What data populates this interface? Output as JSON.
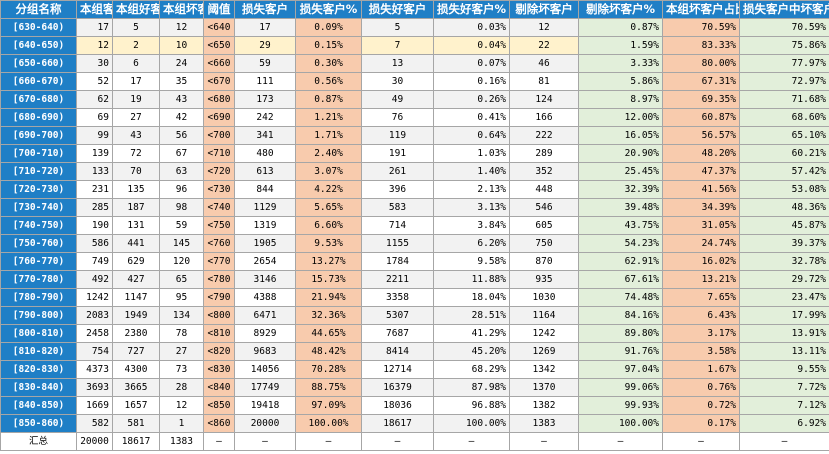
{
  "headers": [
    "分组名称",
    "本组客户",
    "本组好客户",
    "本组坏客户",
    "阈值",
    "损失客户",
    "损失客户%",
    "损失好客户",
    "损失好客户%",
    "剔除坏客户",
    "剔除坏客户%",
    "本组坏客户占比",
    "损失客户中坏客户占比"
  ],
  "colors": {
    "header_blue": "#1f7fc6",
    "peach": "#f8cbad",
    "green": "#e2efda",
    "highlight": "#fff2cc",
    "stripe": "#f2f2f2"
  },
  "rows": [
    [
      "[630-640)",
      "17",
      "5",
      "12",
      "<640",
      "17",
      "0.09%",
      "5",
      "0.03%",
      "12",
      "0.87%",
      "70.59%",
      "70.59%"
    ],
    [
      "[640-650)",
      "12",
      "2",
      "10",
      "<650",
      "29",
      "0.15%",
      "7",
      "0.04%",
      "22",
      "1.59%",
      "83.33%",
      "75.86%"
    ],
    [
      "[650-660)",
      "30",
      "6",
      "24",
      "<660",
      "59",
      "0.30%",
      "13",
      "0.07%",
      "46",
      "3.33%",
      "80.00%",
      "77.97%"
    ],
    [
      "[660-670)",
      "52",
      "17",
      "35",
      "<670",
      "111",
      "0.56%",
      "30",
      "0.16%",
      "81",
      "5.86%",
      "67.31%",
      "72.97%"
    ],
    [
      "[670-680)",
      "62",
      "19",
      "43",
      "<680",
      "173",
      "0.87%",
      "49",
      "0.26%",
      "124",
      "8.97%",
      "69.35%",
      "71.68%"
    ],
    [
      "[680-690)",
      "69",
      "27",
      "42",
      "<690",
      "242",
      "1.21%",
      "76",
      "0.41%",
      "166",
      "12.00%",
      "60.87%",
      "68.60%"
    ],
    [
      "[690-700)",
      "99",
      "43",
      "56",
      "<700",
      "341",
      "1.71%",
      "119",
      "0.64%",
      "222",
      "16.05%",
      "56.57%",
      "65.10%"
    ],
    [
      "[700-710)",
      "139",
      "72",
      "67",
      "<710",
      "480",
      "2.40%",
      "191",
      "1.03%",
      "289",
      "20.90%",
      "48.20%",
      "60.21%"
    ],
    [
      "[710-720)",
      "133",
      "70",
      "63",
      "<720",
      "613",
      "3.07%",
      "261",
      "1.40%",
      "352",
      "25.45%",
      "47.37%",
      "57.42%"
    ],
    [
      "[720-730)",
      "231",
      "135",
      "96",
      "<730",
      "844",
      "4.22%",
      "396",
      "2.13%",
      "448",
      "32.39%",
      "41.56%",
      "53.08%"
    ],
    [
      "[730-740)",
      "285",
      "187",
      "98",
      "<740",
      "1129",
      "5.65%",
      "583",
      "3.13%",
      "546",
      "39.48%",
      "34.39%",
      "48.36%"
    ],
    [
      "[740-750)",
      "190",
      "131",
      "59",
      "<750",
      "1319",
      "6.60%",
      "714",
      "3.84%",
      "605",
      "43.75%",
      "31.05%",
      "45.87%"
    ],
    [
      "[750-760)",
      "586",
      "441",
      "145",
      "<760",
      "1905",
      "9.53%",
      "1155",
      "6.20%",
      "750",
      "54.23%",
      "24.74%",
      "39.37%"
    ],
    [
      "[760-770)",
      "749",
      "629",
      "120",
      "<770",
      "2654",
      "13.27%",
      "1784",
      "9.58%",
      "870",
      "62.91%",
      "16.02%",
      "32.78%"
    ],
    [
      "[770-780)",
      "492",
      "427",
      "65",
      "<780",
      "3146",
      "15.73%",
      "2211",
      "11.88%",
      "935",
      "67.61%",
      "13.21%",
      "29.72%"
    ],
    [
      "[780-790)",
      "1242",
      "1147",
      "95",
      "<790",
      "4388",
      "21.94%",
      "3358",
      "18.04%",
      "1030",
      "74.48%",
      "7.65%",
      "23.47%"
    ],
    [
      "[790-800)",
      "2083",
      "1949",
      "134",
      "<800",
      "6471",
      "32.36%",
      "5307",
      "28.51%",
      "1164",
      "84.16%",
      "6.43%",
      "17.99%"
    ],
    [
      "[800-810)",
      "2458",
      "2380",
      "78",
      "<810",
      "8929",
      "44.65%",
      "7687",
      "41.29%",
      "1242",
      "89.80%",
      "3.17%",
      "13.91%"
    ],
    [
      "[810-820)",
      "754",
      "727",
      "27",
      "<820",
      "9683",
      "48.42%",
      "8414",
      "45.20%",
      "1269",
      "91.76%",
      "3.58%",
      "13.11%"
    ],
    [
      "[820-830)",
      "4373",
      "4300",
      "73",
      "<830",
      "14056",
      "70.28%",
      "12714",
      "68.29%",
      "1342",
      "97.04%",
      "1.67%",
      "9.55%"
    ],
    [
      "[830-840)",
      "3693",
      "3665",
      "28",
      "<840",
      "17749",
      "88.75%",
      "16379",
      "87.98%",
      "1370",
      "99.06%",
      "0.76%",
      "7.72%"
    ],
    [
      "[840-850)",
      "1669",
      "1657",
      "12",
      "<850",
      "19418",
      "97.09%",
      "18036",
      "96.88%",
      "1382",
      "99.93%",
      "0.72%",
      "7.12%"
    ],
    [
      "[850-860)",
      "582",
      "581",
      "1",
      "<860",
      "20000",
      "100.00%",
      "18617",
      "100.00%",
      "1383",
      "100.00%",
      "0.17%",
      "6.92%"
    ]
  ],
  "total": [
    "汇总",
    "20000",
    "18617",
    "1383",
    "–",
    "–",
    "–",
    "–",
    "–",
    "–",
    "–",
    "–",
    "–"
  ]
}
